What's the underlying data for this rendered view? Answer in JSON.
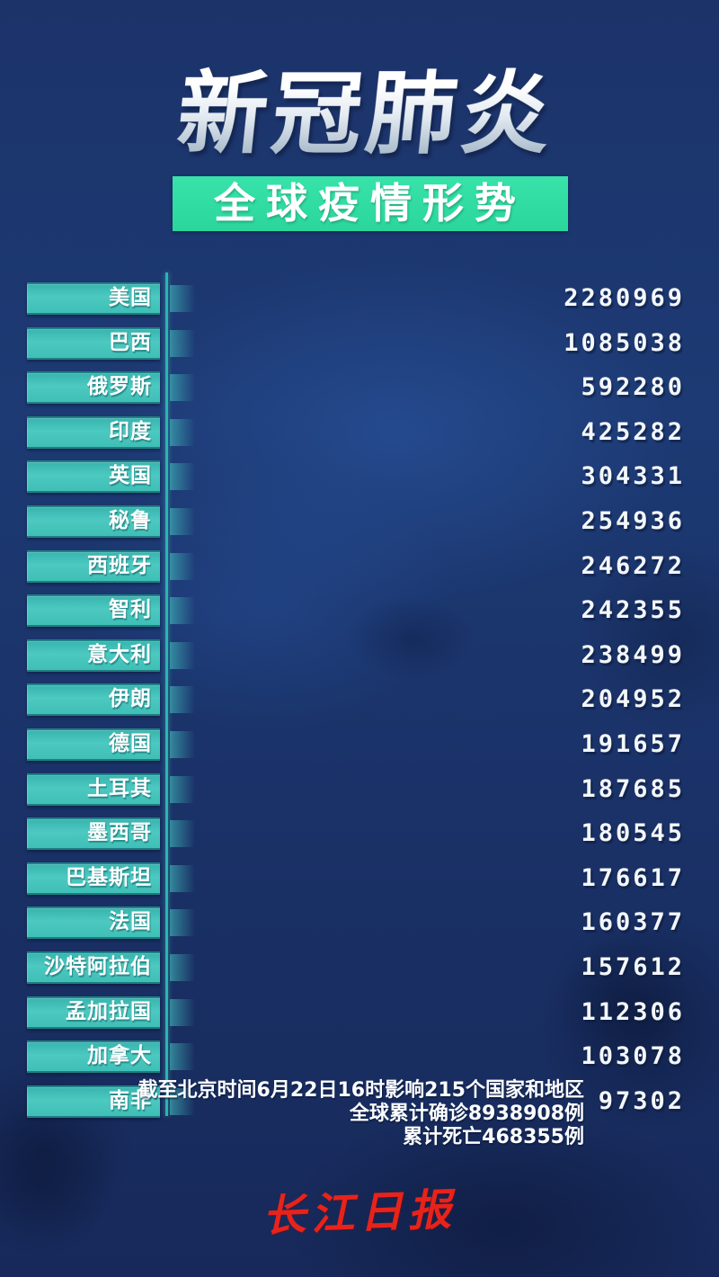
{
  "header": {
    "title": "新冠肺炎",
    "subtitle": "全球疫情形势"
  },
  "table": {
    "rows": [
      {
        "country": "美国",
        "cases": "2280969"
      },
      {
        "country": "巴西",
        "cases": "1085038"
      },
      {
        "country": "俄罗斯",
        "cases": "592280"
      },
      {
        "country": "印度",
        "cases": "425282"
      },
      {
        "country": "英国",
        "cases": "304331"
      },
      {
        "country": "秘鲁",
        "cases": "254936"
      },
      {
        "country": "西班牙",
        "cases": "246272"
      },
      {
        "country": "智利",
        "cases": "242355"
      },
      {
        "country": "意大利",
        "cases": "238499"
      },
      {
        "country": "伊朗",
        "cases": "204952"
      },
      {
        "country": "德国",
        "cases": "191657"
      },
      {
        "country": "土耳其",
        "cases": "187685"
      },
      {
        "country": "墨西哥",
        "cases": "180545"
      },
      {
        "country": "巴基斯坦",
        "cases": "176617"
      },
      {
        "country": "法国",
        "cases": "160377"
      },
      {
        "country": "沙特阿拉伯",
        "cases": "157612"
      },
      {
        "country": "孟加拉国",
        "cases": "112306"
      },
      {
        "country": "加拿大",
        "cases": "103078"
      },
      {
        "country": "南非",
        "cases": "97302"
      }
    ]
  },
  "footer": {
    "line1": "截至北京时间6月22日16时影响215个国家和地区",
    "line2": "全球累计确诊8938908例",
    "line3": "累计死亡468355例"
  },
  "logo": {
    "text": "长江日报"
  },
  "colors": {
    "background_navy": "#1b3268",
    "badge_teal": "#41c0b8",
    "banner_green": "#2fdca2",
    "axis_teal": "#2cb5ae",
    "text_white": "#ffffff",
    "logo_red": "#e8231a"
  },
  "chart_data": {
    "type": "table",
    "title": "新冠肺炎 全球疫情形势",
    "categories": [
      "美国",
      "巴西",
      "俄罗斯",
      "印度",
      "英国",
      "秘鲁",
      "西班牙",
      "智利",
      "意大利",
      "伊朗",
      "德国",
      "土耳其",
      "墨西哥",
      "巴基斯坦",
      "法国",
      "沙特阿拉伯",
      "孟加拉国",
      "加拿大",
      "南非"
    ],
    "values": [
      2280969,
      1085038,
      592280,
      425282,
      304331,
      254936,
      246272,
      242355,
      238499,
      204952,
      191657,
      187685,
      180545,
      176617,
      160377,
      157612,
      112306,
      103078,
      97302
    ],
    "annotations": {
      "as_of": "截至北京时间6月22日16时",
      "countries_affected": 215,
      "global_confirmed": 8938908,
      "global_deaths": 468355
    },
    "source": "长江日报"
  }
}
